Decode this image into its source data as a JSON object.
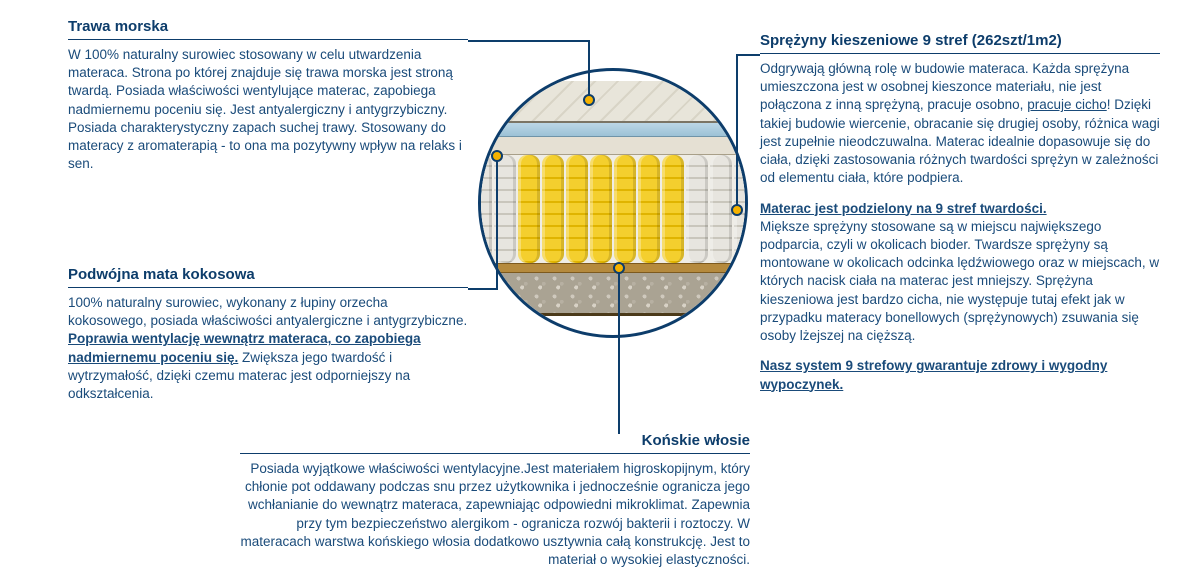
{
  "colors": {
    "text": "#1a4b7a",
    "heading": "#0d3d6b",
    "rule": "#0d3d6b",
    "ring_border": "#0d3d6b",
    "dot_fill": "#f5b200",
    "dot_border": "#0d3d6b",
    "spring_yellow_a": "#f4cf2e",
    "spring_yellow_b": "#e0b400",
    "spring_grey_a": "#e7e5df",
    "spring_grey_b": "#c9c6bc",
    "layer_blue_a": "#bcd7e6",
    "layer_blue_b": "#9cc2d6",
    "layer_brown": "#b58a3d",
    "layer_gravel": "#aaa393",
    "background": "#ffffff"
  },
  "sections": {
    "trawa": {
      "title": "Trawa morska",
      "body": "W 100% naturalny surowiec stosowany w celu utwardzenia materaca. Strona po której znajduje się trawa morska jest stroną twardą. Posiada właściwości wentylujące materac,  zapobiega nadmiernemu poceniu się. Jest antyalergiczny i antygrzybiczny. Posiada charakterystyczny zapach suchej trawy. Stosowany do materacy z aromaterapią - to ona ma pozytywny wpływ na relaks i sen."
    },
    "kokos": {
      "title": "Podwójna mata kokosowa",
      "body_pre": "100% naturalny surowiec, wykonany z łupiny orzecha kokosowego, posiada właściwości antyalergiczne i antygrzybiczne. ",
      "body_bold_ul": "Poprawia wentylację wewnątrz materaca, co zapobiega nadmiernemu poceniu się.",
      "body_post": " Zwiększa jego twardość i wytrzymałość, dzięki czemu materac jest odporniejszy na odkształcenia."
    },
    "konskie": {
      "title": "Końskie włosie",
      "body": "Posiada wyjątkowe właściwości wentylacyjne.Jest materiałem higroskopijnym, który chłonie pot oddawany podczas snu przez użytkownika i jednocześnie ogranicza jego wchłanianie do wewnątrz materaca, zapewniając odpowiedni mikroklimat. Zapewnia przy tym bezpieczeństwo alergikom - ogranicza rozwój bakterii i roztoczy. W materacach warstwa końskiego włosia dodatkowo usztywnia całą konstrukcję. Jest to materiał o wysokiej elastyczności."
    },
    "sprezyny": {
      "title": "Sprężyny kieszeniowe 9 stref (262szt/1m2)",
      "p1_pre": "Odgrywają główną rolę w budowie materaca. Każda sprężyna umieszczona jest w osobnej kieszonce materiału, nie jest połączona z inną sprężyną, pracuje osobno, ",
      "p1_ul": "pracuje cicho",
      "p1_post": "! Dzięki takiej budowie wiercenie, obracanie się drugiej osoby, różnica wagi jest zupełnie nieodczuwalna. Materac idealnie dopasowuje się do ciała, dzięki zastosowania różnych twardości sprężyn w zależności od elementu ciała, które podpiera.",
      "p2_head": "Materac jest podzielony na 9 stref twardości.",
      "p2_body": "Miększe sprężyny stosowane są w miejscu największego podparcia, czyli w okolicach bioder. Twardsze sprężyny są montowane w okolicach odcinka lędźwiowego oraz w miejscach, w których nacisk ciała na materac jest mniejszy. Sprężyna kieszeniowa jest bardzo cicha, nie występuje tutaj efekt jak w przypadku materacy bonellowych (sprężynowych) zsuwania się osoby lżejszej na cięższą.",
      "p3": "Nasz system 9 strefowy gwarantuje zdrowy i wygodny wypoczynek."
    }
  },
  "diagram": {
    "type": "infographic",
    "spring_pattern": [
      "grey",
      "grey",
      "yellow",
      "yellow",
      "yellow",
      "yellow",
      "yellow",
      "yellow",
      "yellow",
      "grey",
      "grey",
      "grey"
    ]
  }
}
